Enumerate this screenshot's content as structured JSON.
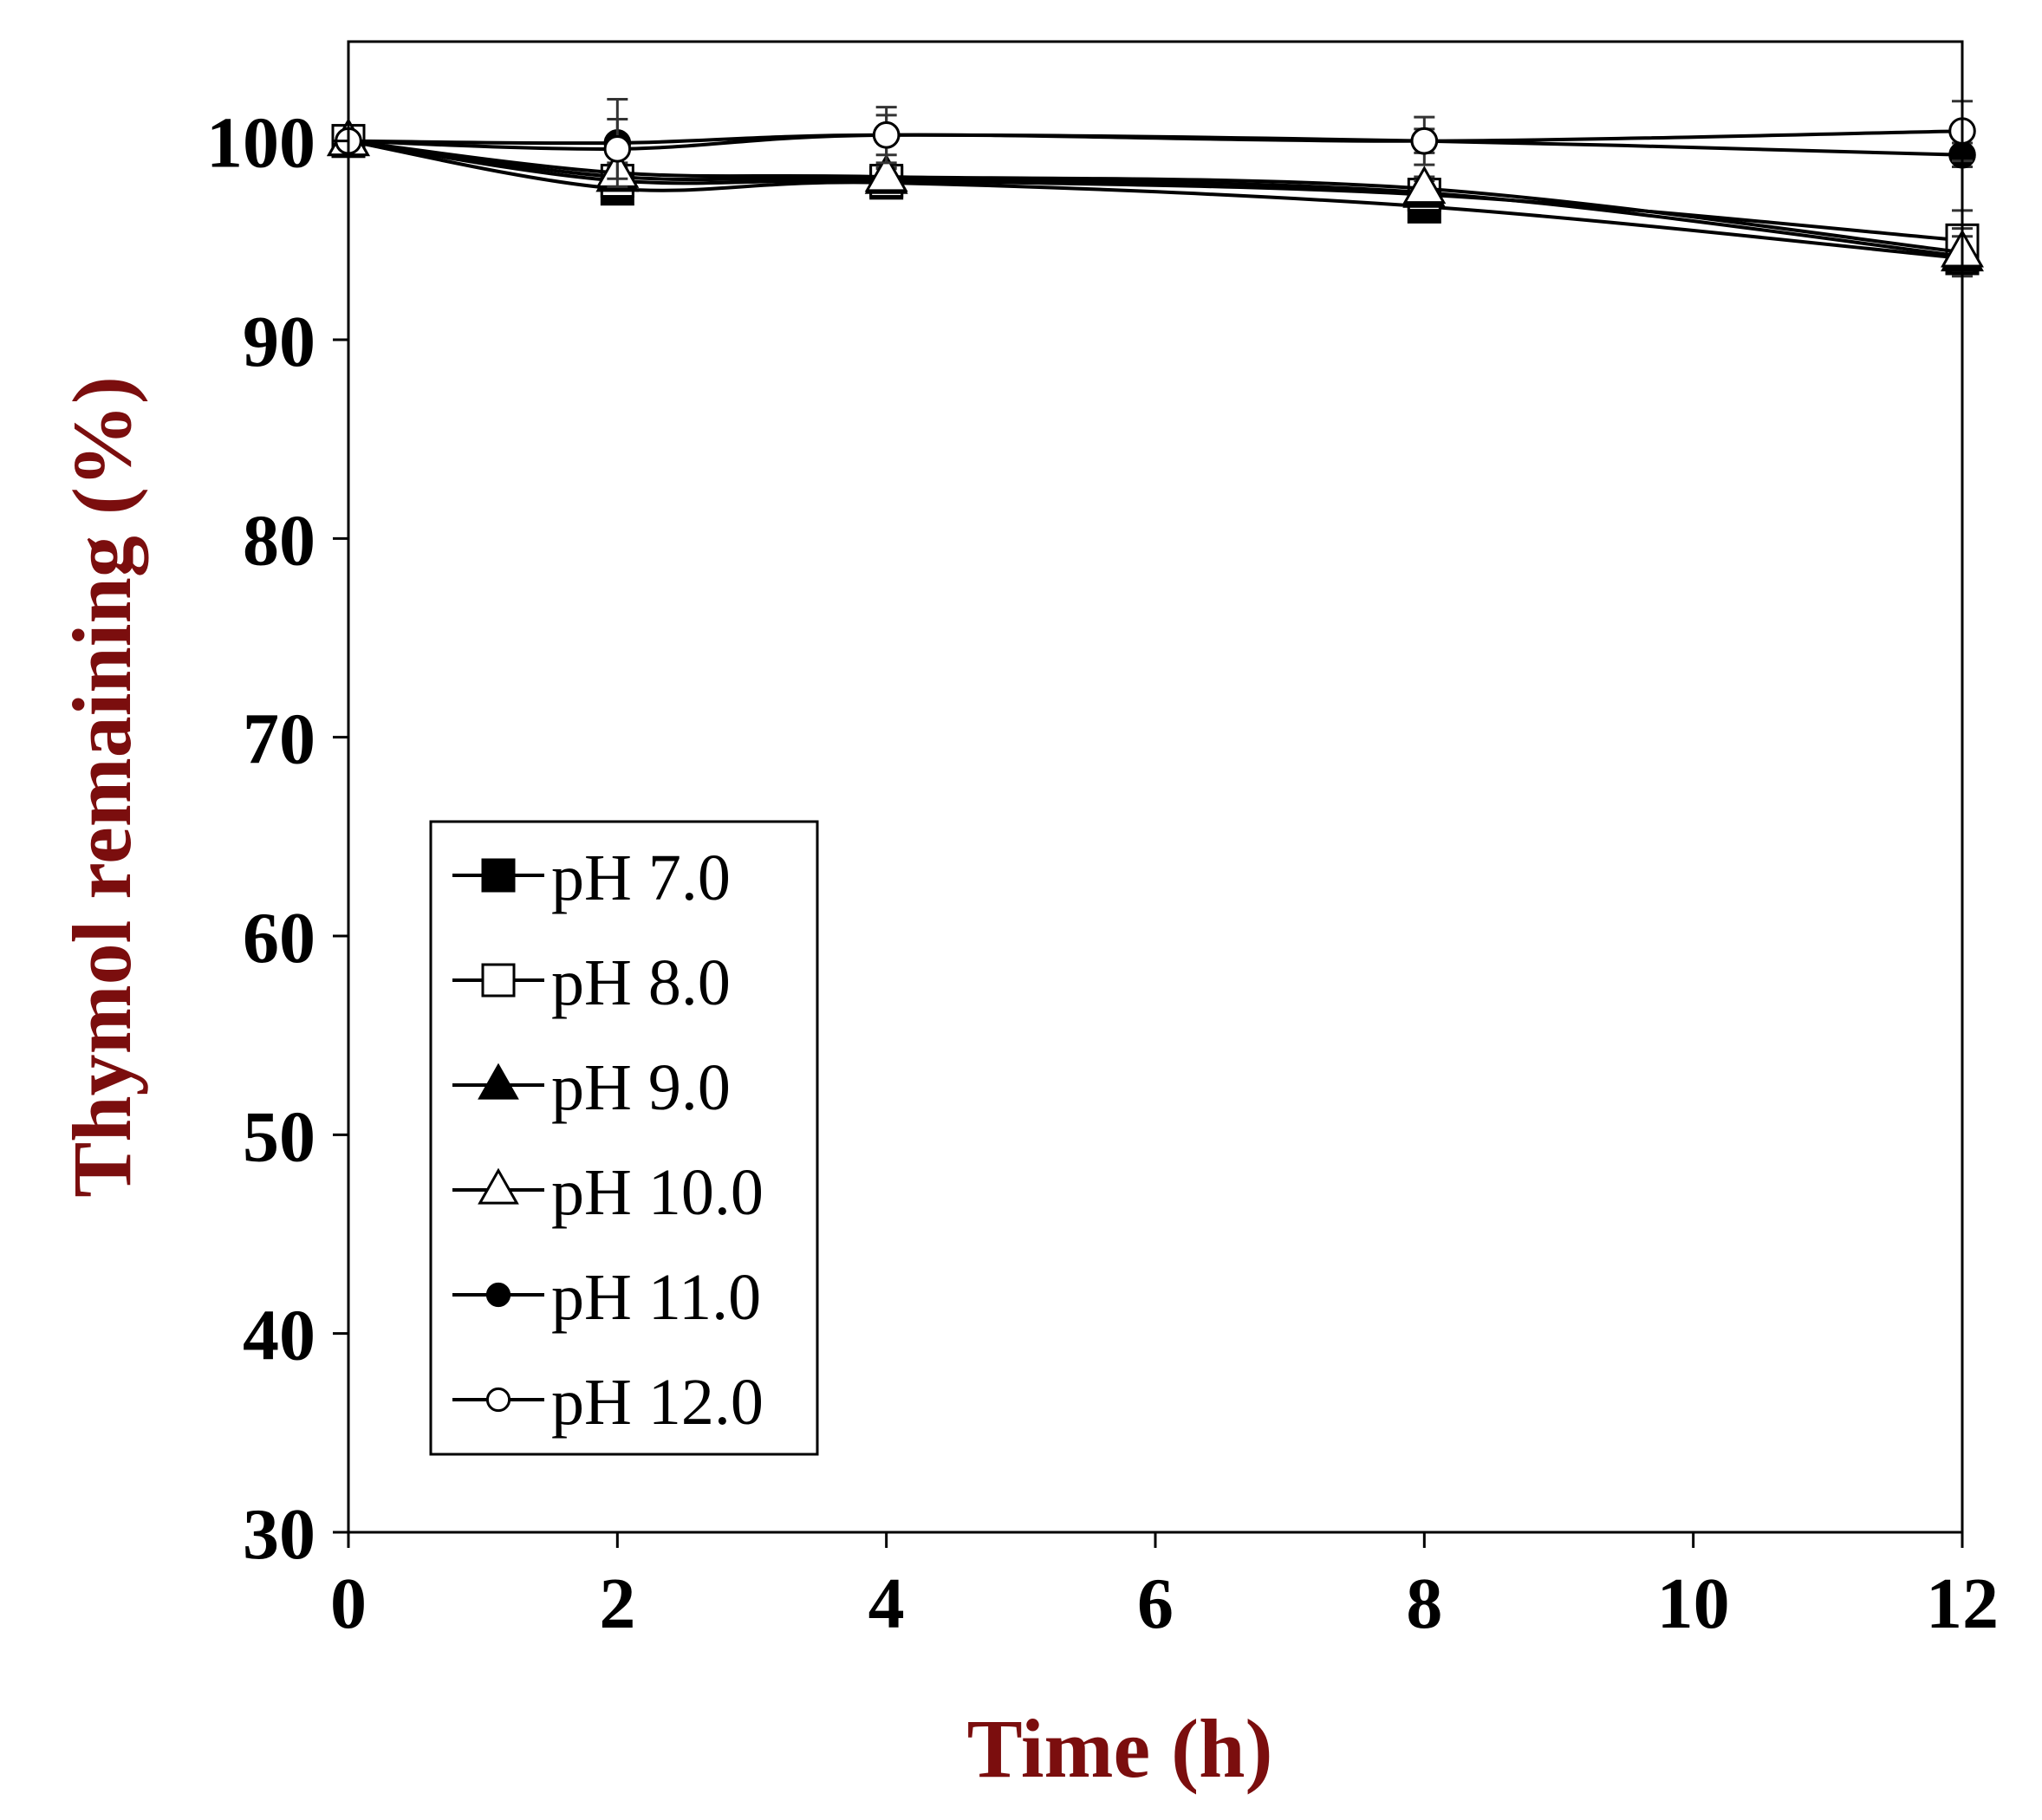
{
  "chart_data": {
    "type": "line",
    "title": "",
    "xlabel": "Time (h)",
    "ylabel": "Thymol remaining (%)",
    "xlim": [
      0,
      12
    ],
    "ylim": [
      30,
      105
    ],
    "x_ticks": [
      0,
      2,
      4,
      6,
      8,
      10,
      12
    ],
    "y_ticks": [
      30,
      40,
      50,
      60,
      70,
      80,
      90,
      100
    ],
    "grid": false,
    "legend_position": "lower-left",
    "x": [
      0,
      2,
      4,
      8,
      12
    ],
    "series": [
      {
        "name": "pH 7.0",
        "marker": "square",
        "filled": true,
        "values": [
          100,
          97.6,
          97.9,
          96.7,
          94.1
        ],
        "errors": [
          0,
          0.5,
          0.5,
          0.6,
          0.8
        ]
      },
      {
        "name": "pH 8.0",
        "marker": "square",
        "filled": false,
        "values": [
          100,
          98.0,
          98.0,
          97.3,
          95.0
        ],
        "errors": [
          0,
          0.5,
          0.5,
          0.6,
          1.5
        ]
      },
      {
        "name": "pH 9.0",
        "marker": "triangle",
        "filled": true,
        "values": [
          100,
          98.2,
          98.1,
          97.4,
          94.2
        ],
        "errors": [
          0,
          0.5,
          0.5,
          0.6,
          1.0
        ]
      },
      {
        "name": "pH 10.0",
        "marker": "triangle",
        "filled": false,
        "values": [
          100,
          98.4,
          98.2,
          97.6,
          94.4
        ],
        "errors": [
          0,
          0.5,
          0.5,
          0.6,
          1.2
        ]
      },
      {
        "name": "pH 11.0",
        "marker": "circle",
        "filled": true,
        "values": [
          100,
          99.9,
          100.3,
          100.0,
          99.3
        ],
        "errors": [
          0,
          2.2,
          1.4,
          0.6,
          0.6
        ]
      },
      {
        "name": "pH 12.0",
        "marker": "circle",
        "filled": false,
        "values": [
          100,
          99.6,
          100.3,
          100.0,
          100.5
        ],
        "errors": [
          0,
          1.5,
          1.0,
          1.2,
          1.5
        ]
      }
    ]
  }
}
